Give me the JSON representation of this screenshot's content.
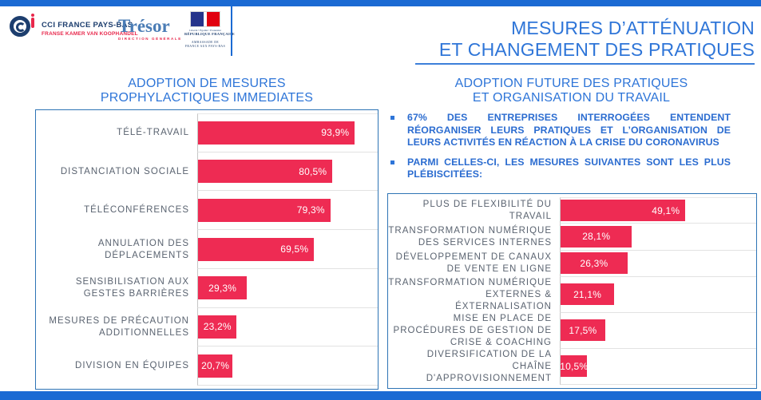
{
  "colors": {
    "accent_blue": "#1b6ad3",
    "title_blue": "#2e75d8",
    "bar_red": "#ee2b53",
    "box_border": "#2e74b5",
    "label_gray": "#5a6370"
  },
  "header": {
    "title_line1": "MESURES D’ATTÉNUATION",
    "title_line2": "ET CHANGEMENT DES PRATIQUES",
    "logos": {
      "cci": {
        "name": "CCI FRANCE PAYS-BAS",
        "subtitle": "FRANSE KAMER VAN KOOPHANDEL"
      },
      "tresor": {
        "name": "Trésor",
        "subtitle": "DIRECTION GÉNÉRALE"
      },
      "france": {
        "motto": "Liberté • Égalité • Fraternité",
        "republic": "RÉPUBLIQUE FRANÇAISE",
        "mission": "AMBASSADE DE FRANCE AUX PAYS-BAS"
      }
    }
  },
  "right_panel": {
    "bullets": [
      "67% DES ENTREPRISES INTERROGÉES ENTENDENT RÉORGANISER LEURS PRATIQUES ET L’ORGANISATION DE LEURS ACTIVITÉS EN RÉACTION À LA CRISE DU CORONAVIRUS",
      "PARMI CELLES-CI, LES MESURES SUIVANTES SONT LES PLUS PLÉBISCITÉES:"
    ]
  },
  "chart_data": [
    {
      "type": "bar",
      "orientation": "horizontal",
      "title_line1": "ADOPTION DE MESURES",
      "title_line2": "PROPHYLACTIQUES IMMEDIATES",
      "categories": [
        "TÉLÉ-TRAVAIL",
        "DISTANCIATION SOCIALE",
        "TÉLÉCONFÉRENCES",
        "ANNULATION DES DÉPLACEMENTS",
        "SENSIBILISATION AUX GESTES BARRIÈRES",
        "MESURES DE PRÉCAUTION ADDITIONNELLES",
        "DIVISION EN ÉQUIPES"
      ],
      "values": [
        93.9,
        80.5,
        79.3,
        69.5,
        29.3,
        23.2,
        20.7
      ],
      "value_labels": [
        "93,9%",
        "80,5%",
        "79,3%",
        "69,5%",
        "29,3%",
        "23,2%",
        "20,7%"
      ],
      "xlim": [
        0,
        100
      ],
      "grid": "row-separators",
      "legend": "none",
      "bar_color": "#ee2b53"
    },
    {
      "type": "bar",
      "orientation": "horizontal",
      "title_line1": "ADOPTION FUTURE DES PRATIQUES",
      "title_line2": "ET ORGANISATION DU TRAVAIL",
      "categories": [
        "PLUS DE FLEXIBILITÉ DU TRAVAIL",
        "TRANSFORMATION NUMÉRIQUE DES SERVICES INTERNES",
        "DÉVELOPPEMENT DE CANAUX DE VENTE EN LIGNE",
        "TRANSFORMATION NUMÉRIQUE EXTERNES & ÉXTERNALISATION",
        "MISE EN PLACE DE PROCÉDURES DE GESTION DE CRISE & COACHING",
        "DIVERSIFICATION DE LA CHAÎNE D'APPROVISIONNEMENT"
      ],
      "values": [
        49.1,
        28.1,
        26.3,
        21.1,
        17.5,
        10.5
      ],
      "value_labels": [
        "49,1%",
        "28,1%",
        "26,3%",
        "21,1%",
        "17,5%",
        "10,5%"
      ],
      "xlim": [
        0,
        60
      ],
      "grid": "row-separators",
      "legend": "none",
      "bar_color": "#ee2b53"
    }
  ]
}
